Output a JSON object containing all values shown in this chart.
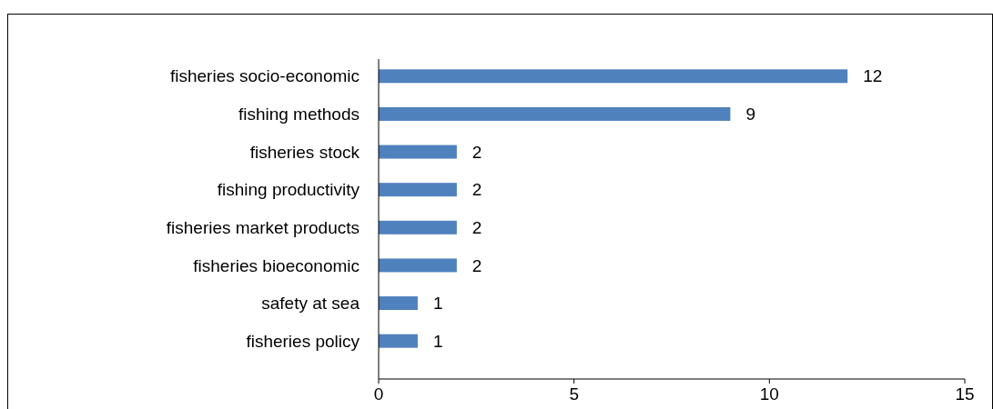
{
  "chart_data": {
    "type": "bar",
    "orientation": "horizontal",
    "categories": [
      "fisheries socio-economic",
      "fishing methods",
      "fisheries stock",
      "fishing productivity",
      "fisheries market products",
      "fisheries bioeconomic",
      "safety at sea",
      "fisheries policy"
    ],
    "values": [
      12,
      9,
      2,
      2,
      2,
      2,
      1,
      1
    ],
    "color": "#4f81bd",
    "xlim": [
      0,
      15
    ],
    "xticks": [
      0,
      5,
      10,
      15
    ],
    "data_labels": true,
    "grid": false
  }
}
